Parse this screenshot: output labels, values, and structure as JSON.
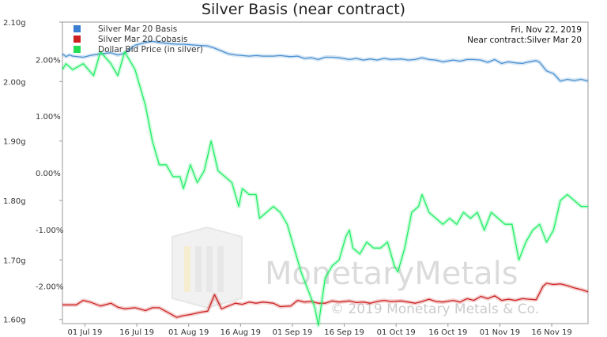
{
  "chart_data": {
    "type": "line",
    "title": "Silver Basis (near contract)",
    "info": {
      "date": "Fri, Nov 22, 2019",
      "near_contract": "Near contract:Silver Mar 20"
    },
    "watermark": {
      "brand": "MonetaryMetals",
      "copyright": "© 2019 Monetary Metals & Co."
    },
    "legend_position": "top-left",
    "x_ticks": [
      "01 Jul 19",
      "16 Jul 19",
      "01 Aug 19",
      "16 Aug 19",
      "01 Sep 19",
      "16 Sep 19",
      "01 Oct 19",
      "16 Oct 19",
      "01 Nov 19",
      "16 Nov 19"
    ],
    "x_range": [
      -6,
      146
    ],
    "y_left_ticks": [
      "2.10g",
      "2.00g",
      "1.90g",
      "1.80g",
      "1.70g",
      "1.60g"
    ],
    "y_left_values": [
      2.1,
      2.0,
      1.9,
      1.8,
      1.7,
      1.6
    ],
    "y_left_range": [
      1.593,
      2.1
    ],
    "y_right_ticks": [
      "2.00%",
      "1.00%",
      "0.00%",
      "-1.00%",
      "-2.00%"
    ],
    "y_right_values": [
      2,
      1,
      0,
      -1,
      -2
    ],
    "y_right_range": [
      -2.66,
      2.66
    ],
    "series": [
      {
        "name": "Silver Mar 20 Basis",
        "axis": "right",
        "color": "#4a90d0",
        "x": [
          -6,
          -5,
          -4,
          -3,
          0,
          2,
          5,
          8,
          10,
          12,
          15,
          18,
          20,
          22,
          25,
          27,
          29,
          31,
          33,
          36,
          38,
          40,
          42,
          44,
          46,
          48,
          50,
          52,
          55,
          57,
          60,
          62,
          64,
          66,
          68,
          70,
          72,
          74,
          77,
          79,
          81,
          83,
          85,
          87,
          89,
          92,
          94,
          96,
          98,
          100,
          102,
          104,
          107,
          109,
          111,
          113,
          115,
          117,
          119,
          121,
          123,
          125,
          127,
          129,
          131,
          132,
          134,
          136,
          138,
          140,
          142,
          144,
          146
        ],
        "y": [
          2.1,
          2.05,
          2.08,
          2.06,
          2.04,
          2.07,
          2.1,
          2.12,
          2.08,
          2.11,
          2.25,
          2.3,
          2.32,
          2.3,
          2.28,
          2.27,
          2.27,
          2.26,
          2.25,
          2.24,
          2.2,
          2.15,
          2.1,
          2.08,
          2.07,
          2.06,
          2.07,
          2.06,
          2.06,
          2.07,
          2.05,
          2.06,
          2.02,
          2.03,
          2.0,
          2.04,
          2.04,
          2.03,
          2.0,
          2.02,
          1.99,
          2.01,
          1.99,
          2.02,
          2.0,
          2.01,
          1.99,
          2.0,
          2.03,
          2.0,
          1.99,
          1.96,
          1.99,
          1.97,
          2.0,
          2.0,
          1.99,
          1.95,
          2.0,
          1.93,
          1.96,
          1.94,
          1.93,
          1.96,
          1.98,
          1.95,
          1.8,
          1.75,
          1.62,
          1.65,
          1.63,
          1.65,
          1.62
        ]
      },
      {
        "name": "Silver Mar 20 Cobasis",
        "axis": "right",
        "color": "#cc2222",
        "x": [
          -6,
          -2,
          0,
          2,
          5,
          8,
          10,
          12,
          15,
          18,
          20,
          22,
          25,
          27,
          29,
          31,
          34,
          36,
          38,
          40,
          42,
          44,
          46,
          48,
          50,
          52,
          55,
          57,
          60,
          62,
          64,
          66,
          68,
          70,
          72,
          74,
          77,
          79,
          81,
          83,
          85,
          87,
          89,
          92,
          94,
          96,
          98,
          100,
          102,
          104,
          107,
          109,
          111,
          113,
          115,
          117,
          119,
          121,
          123,
          125,
          127,
          129,
          131,
          133,
          134,
          136,
          138,
          140,
          142,
          144,
          146
        ],
        "y": [
          -2.33,
          -2.33,
          -2.25,
          -2.28,
          -2.35,
          -2.3,
          -2.37,
          -2.4,
          -2.38,
          -2.43,
          -2.38,
          -2.38,
          -2.48,
          -2.55,
          -2.52,
          -2.5,
          -2.46,
          -2.44,
          -2.15,
          -2.4,
          -2.35,
          -2.3,
          -2.32,
          -2.28,
          -2.3,
          -2.28,
          -2.3,
          -2.36,
          -2.35,
          -2.25,
          -2.28,
          -2.27,
          -2.3,
          -2.3,
          -2.26,
          -2.28,
          -2.26,
          -2.29,
          -2.28,
          -2.3,
          -2.27,
          -2.25,
          -2.27,
          -2.26,
          -2.28,
          -2.3,
          -2.27,
          -2.23,
          -2.27,
          -2.28,
          -2.25,
          -2.28,
          -2.22,
          -2.25,
          -2.18,
          -2.22,
          -2.17,
          -2.25,
          -2.23,
          -2.25,
          -2.22,
          -2.23,
          -2.24,
          -2.0,
          -1.95,
          -1.97,
          -1.96,
          -1.99,
          -2.03,
          -2.06,
          -2.1
        ]
      },
      {
        "name": "Dollar Bid Price (in silver)",
        "axis": "left",
        "color": "#22ee66",
        "x": [
          -6,
          -5,
          -3,
          0,
          3,
          5,
          8,
          10,
          12,
          15,
          18,
          20,
          22,
          24,
          26,
          28,
          29,
          31,
          33,
          35,
          37,
          39,
          41,
          43,
          45,
          46,
          48,
          50,
          51,
          53,
          55,
          57,
          59,
          61,
          63,
          65,
          67,
          68,
          70,
          72,
          74,
          76,
          77,
          78,
          80,
          82,
          84,
          86,
          88,
          90,
          91,
          93,
          95,
          97,
          98,
          100,
          102,
          104,
          106,
          108,
          110,
          112,
          114,
          116,
          118,
          120,
          122,
          124,
          126,
          128,
          130,
          132,
          134,
          136,
          138,
          140,
          142,
          144,
          146
        ],
        "y": [
          2.02,
          2.03,
          2.02,
          2.03,
          2.01,
          2.05,
          2.03,
          2.01,
          2.05,
          2.02,
          1.96,
          1.9,
          1.86,
          1.86,
          1.84,
          1.84,
          1.82,
          1.86,
          1.83,
          1.85,
          1.9,
          1.85,
          1.84,
          1.83,
          1.79,
          1.82,
          1.81,
          1.81,
          1.77,
          1.78,
          1.79,
          1.78,
          1.76,
          1.72,
          1.68,
          1.65,
          1.62,
          1.59,
          1.67,
          1.69,
          1.7,
          1.74,
          1.75,
          1.72,
          1.71,
          1.73,
          1.72,
          1.72,
          1.73,
          1.69,
          1.68,
          1.72,
          1.78,
          1.79,
          1.81,
          1.78,
          1.77,
          1.76,
          1.77,
          1.76,
          1.78,
          1.77,
          1.78,
          1.75,
          1.78,
          1.77,
          1.76,
          1.76,
          1.7,
          1.73,
          1.75,
          1.76,
          1.73,
          1.75,
          1.8,
          1.81,
          1.8,
          1.79,
          1.79
        ]
      }
    ]
  }
}
